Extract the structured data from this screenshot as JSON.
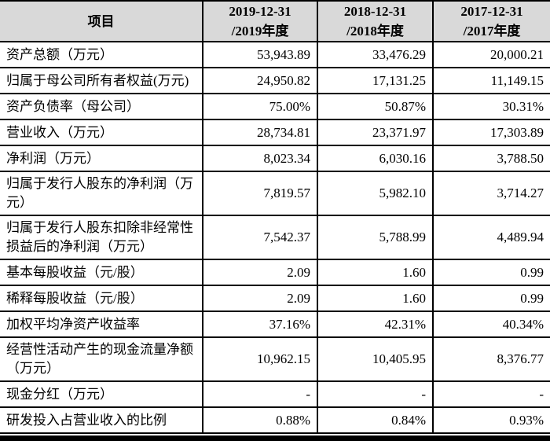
{
  "table": {
    "header": {
      "item_label": "项目",
      "columns": [
        {
          "line1": "2019-12-31",
          "line2": "/2019年度"
        },
        {
          "line1": "2018-12-31",
          "line2": "/2018年度"
        },
        {
          "line1": "2017-12-31",
          "line2": "/2017年度"
        }
      ]
    },
    "rows": [
      {
        "label": "资产总额（万元）",
        "values": [
          "53,943.89",
          "33,476.29",
          "20,000.21"
        ]
      },
      {
        "label": "归属于母公司所有者权益(万元)",
        "values": [
          "24,950.82",
          "17,131.25",
          "11,149.15"
        ]
      },
      {
        "label": "资产负债率（母公司）",
        "values": [
          "75.00%",
          "50.87%",
          "30.31%"
        ]
      },
      {
        "label": "营业收入（万元）",
        "values": [
          "28,734.81",
          "23,371.97",
          "17,303.89"
        ]
      },
      {
        "label": "净利润（万元）",
        "values": [
          "8,023.34",
          "6,030.16",
          "3,788.50"
        ]
      },
      {
        "label": "归属于发行人股东的净利润（万元）",
        "values": [
          "7,819.57",
          "5,982.10",
          "3,714.27"
        ]
      },
      {
        "label": "归属于发行人股东扣除非经常性损益后的净利润（万元）",
        "values": [
          "7,542.37",
          "5,788.99",
          "4,489.94"
        ]
      },
      {
        "label": "基本每股收益（元/股）",
        "values": [
          "2.09",
          "1.60",
          "0.99"
        ]
      },
      {
        "label": "稀释每股收益（元/股）",
        "values": [
          "2.09",
          "1.60",
          "0.99"
        ]
      },
      {
        "label": "加权平均净资产收益率",
        "values": [
          "37.16%",
          "42.31%",
          "40.34%"
        ]
      },
      {
        "label": "经营性活动产生的现金流量净额（万元）",
        "values": [
          "10,962.15",
          "10,405.95",
          "8,376.77"
        ]
      },
      {
        "label": "现金分红（万元）",
        "values": [
          "-",
          "-",
          "-"
        ]
      },
      {
        "label": "研发投入占营业收入的比例",
        "values": [
          "0.88%",
          "0.84%",
          "0.93%"
        ]
      }
    ],
    "colors": {
      "header_bg": "#d9d9d9",
      "border": "#000000",
      "text": "#000000",
      "body_bg": "#ffffff"
    }
  }
}
